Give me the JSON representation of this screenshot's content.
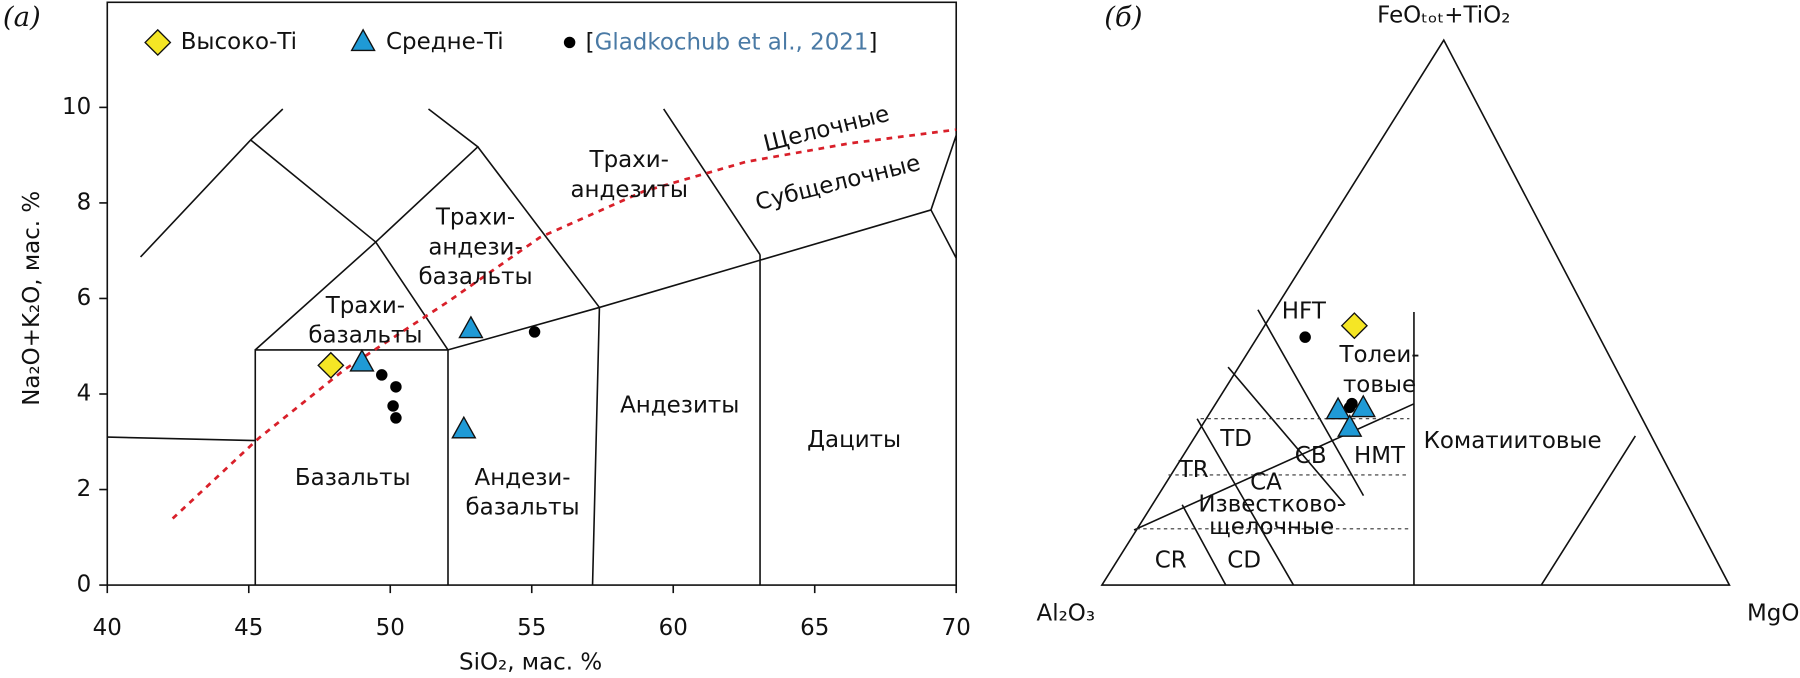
{
  "chart_data": [
    {
      "type": "scatter",
      "panel_label": "(а)",
      "xlabel": "SiO₂, мас. %",
      "ylabel": "Na₂O+K₂O, мас. %",
      "xlim": [
        40,
        70
      ],
      "ylim": [
        0,
        12.2
      ],
      "xticks": [
        40,
        45,
        50,
        55,
        60,
        65,
        70
      ],
      "yticks": [
        0,
        2,
        4,
        6,
        8,
        10
      ],
      "legend": "top",
      "series": [
        {
          "name": "Высоко-Ti",
          "color": "#f5e625",
          "marker": "diamond",
          "x": [
            47.9
          ],
          "values": [
            4.6
          ]
        },
        {
          "name": "Средне-Ti",
          "color": "#1f9ad6",
          "marker": "triangle",
          "x": [
            49.0,
            52.85,
            52.6
          ],
          "values": [
            4.65,
            5.35,
            3.25
          ]
        },
        {
          "name": "[Gladkochub et al., 2021]",
          "color": "#000000",
          "name_color": "#4a7aa5",
          "marker": "circle",
          "x": [
            49.7,
            50.2,
            50.1,
            50.2,
            55.1
          ],
          "values": [
            4.4,
            4.15,
            3.75,
            3.5,
            5.3
          ]
        }
      ],
      "annotations": [
        [
          "Трахи-",
          "базальты"
        ],
        [
          "Трахи-",
          "андези-",
          "базальты"
        ],
        [
          "Трахи-",
          "андезиты"
        ],
        [
          "Щелочные"
        ],
        [
          "Субщелочные"
        ],
        [
          "Базальты"
        ],
        [
          "Андези-",
          "базальты"
        ],
        [
          "Андезиты"
        ],
        [
          "Дациты"
        ]
      ]
    },
    {
      "type": "ternary",
      "panel_label": "(б)",
      "axis_labels": [
        "Al₂O₃",
        "FeOₜₒₜ+TiO₂",
        "MgO"
      ],
      "series": [
        {
          "color": "#f5e625",
          "marker": "diamond",
          "values": [
            [
              38.1,
              47.6,
              14.3
            ]
          ]
        },
        {
          "color": "#000000",
          "marker": "circle",
          "values": [
            [
              46.9,
              45.5,
              7.6
            ],
            [
              45.0,
              33.3,
              21.7
            ],
            [
              45.7,
              32.6,
              21.7
            ]
          ]
        },
        {
          "color": "#1f9ad6",
          "marker": "triangle",
          "values": [
            [
              47.8,
              32.0,
              20.2
            ],
            [
              43.6,
              32.4,
              24.0
            ],
            [
              47.4,
              28.8,
              23.8
            ]
          ]
        }
      ],
      "annotations": [
        [
          "HFT"
        ],
        [
          "Толеи-",
          "товые"
        ],
        [
          "TD"
        ],
        [
          "TR"
        ],
        [
          "CA"
        ],
        [
          "CB"
        ],
        [
          "HMT"
        ],
        [
          "Известково-",
          "щелочные"
        ],
        [
          "CR"
        ],
        [
          "CD"
        ],
        [
          "Коматиитовые"
        ]
      ]
    }
  ]
}
